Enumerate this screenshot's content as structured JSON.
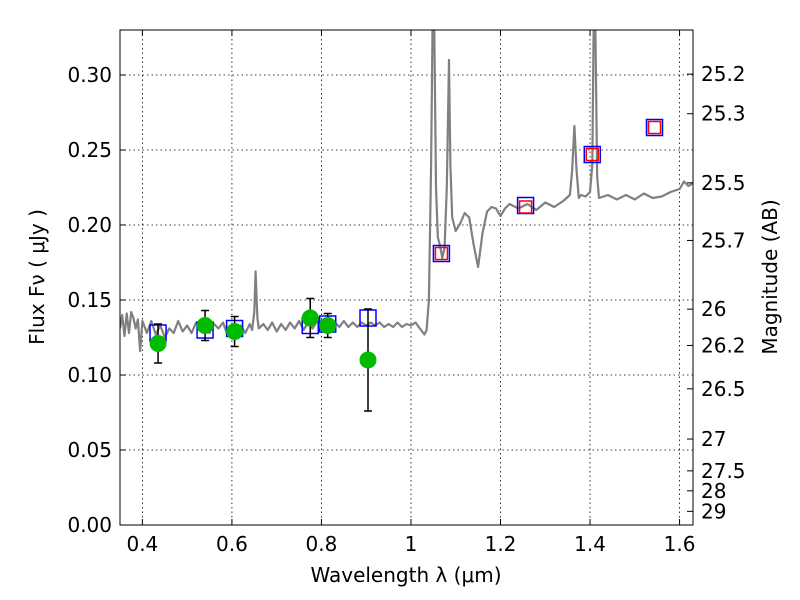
{
  "chart_data": {
    "type": "scatter",
    "title": "",
    "xlabel": "Wavelength  λ (μm)",
    "ylabel": "Flux  Fν  ( μJy )",
    "ylabel_right": "Magnitude (AB)",
    "xlim": [
      0.35,
      1.63
    ],
    "ylim": [
      0.0,
      0.33
    ],
    "grid": true,
    "x_ticks": [
      0.4,
      0.6,
      0.8,
      1.0,
      1.2,
      1.4,
      1.6
    ],
    "x_tick_labels": [
      "0.4",
      "0.6",
      "0.8",
      "1",
      "1.2",
      "1.4",
      "1.6"
    ],
    "y_ticks": [
      0.0,
      0.05,
      0.1,
      0.15,
      0.2,
      0.25,
      0.3
    ],
    "y_tick_labels": [
      "0.00",
      "0.05",
      "0.10",
      "0.15",
      "0.20",
      "0.25",
      "0.30"
    ],
    "right_ticks": [
      {
        "label": "25.2",
        "flux": 0.3006
      },
      {
        "label": "25.3",
        "flux": 0.2742
      },
      {
        "label": "25.5",
        "flux": 0.2281
      },
      {
        "label": "25.7",
        "flux": 0.1897
      },
      {
        "label": "26",
        "flux": 0.1439
      },
      {
        "label": "26.2",
        "flux": 0.1197
      },
      {
        "label": "26.5",
        "flux": 0.0908
      },
      {
        "label": "27",
        "flux": 0.0573
      },
      {
        "label": "27.5",
        "flux": 0.0361
      },
      {
        "label": "28",
        "flux": 0.0228
      },
      {
        "label": "29",
        "flux": 0.0091
      }
    ],
    "series": [
      {
        "name": "template spectrum",
        "kind": "line",
        "color": "#808080",
        "points": [
          [
            0.35,
            0.131
          ],
          [
            0.355,
            0.14
          ],
          [
            0.36,
            0.126
          ],
          [
            0.365,
            0.141
          ],
          [
            0.37,
            0.128
          ],
          [
            0.375,
            0.142
          ],
          [
            0.38,
            0.138
          ],
          [
            0.385,
            0.131
          ],
          [
            0.39,
            0.137
          ],
          [
            0.395,
            0.116
          ],
          [
            0.4,
            0.136
          ],
          [
            0.41,
            0.128
          ],
          [
            0.42,
            0.136
          ],
          [
            0.43,
            0.127
          ],
          [
            0.44,
            0.133
          ],
          [
            0.45,
            0.125
          ],
          [
            0.46,
            0.131
          ],
          [
            0.47,
            0.128
          ],
          [
            0.48,
            0.136
          ],
          [
            0.49,
            0.129
          ],
          [
            0.5,
            0.133
          ],
          [
            0.51,
            0.128
          ],
          [
            0.52,
            0.135
          ],
          [
            0.53,
            0.13
          ],
          [
            0.54,
            0.136
          ],
          [
            0.55,
            0.128
          ],
          [
            0.56,
            0.134
          ],
          [
            0.57,
            0.131
          ],
          [
            0.58,
            0.135
          ],
          [
            0.59,
            0.127
          ],
          [
            0.6,
            0.134
          ],
          [
            0.61,
            0.129
          ],
          [
            0.62,
            0.133
          ],
          [
            0.63,
            0.128
          ],
          [
            0.64,
            0.134
          ],
          [
            0.645,
            0.13
          ],
          [
            0.65,
            0.142
          ],
          [
            0.653,
            0.169
          ],
          [
            0.657,
            0.138
          ],
          [
            0.66,
            0.131
          ],
          [
            0.67,
            0.134
          ],
          [
            0.68,
            0.13
          ],
          [
            0.69,
            0.135
          ],
          [
            0.7,
            0.129
          ],
          [
            0.71,
            0.134
          ],
          [
            0.72,
            0.13
          ],
          [
            0.73,
            0.135
          ],
          [
            0.74,
            0.131
          ],
          [
            0.75,
            0.136
          ],
          [
            0.76,
            0.13
          ],
          [
            0.77,
            0.135
          ],
          [
            0.78,
            0.131
          ],
          [
            0.79,
            0.136
          ],
          [
            0.8,
            0.132
          ],
          [
            0.81,
            0.136
          ],
          [
            0.82,
            0.131
          ],
          [
            0.83,
            0.135
          ],
          [
            0.84,
            0.132
          ],
          [
            0.85,
            0.136
          ],
          [
            0.86,
            0.132
          ],
          [
            0.87,
            0.135
          ],
          [
            0.88,
            0.132
          ],
          [
            0.89,
            0.135
          ],
          [
            0.9,
            0.133
          ],
          [
            0.91,
            0.135
          ],
          [
            0.92,
            0.133
          ],
          [
            0.93,
            0.135
          ],
          [
            0.94,
            0.132
          ],
          [
            0.95,
            0.134
          ],
          [
            0.96,
            0.132
          ],
          [
            0.97,
            0.135
          ],
          [
            0.98,
            0.132
          ],
          [
            0.99,
            0.134
          ],
          [
            1.0,
            0.133
          ],
          [
            1.01,
            0.135
          ],
          [
            1.02,
            0.131
          ],
          [
            1.03,
            0.127
          ],
          [
            1.035,
            0.13
          ],
          [
            1.04,
            0.15
          ],
          [
            1.045,
            0.24
          ],
          [
            1.048,
            0.33
          ],
          [
            1.052,
            0.33
          ],
          [
            1.056,
            0.225
          ],
          [
            1.06,
            0.192
          ],
          [
            1.065,
            0.186
          ],
          [
            1.07,
            0.178
          ],
          [
            1.075,
            0.185
          ],
          [
            1.08,
            0.225
          ],
          [
            1.085,
            0.31
          ],
          [
            1.088,
            0.24
          ],
          [
            1.092,
            0.205
          ],
          [
            1.1,
            0.196
          ],
          [
            1.11,
            0.201
          ],
          [
            1.12,
            0.208
          ],
          [
            1.13,
            0.205
          ],
          [
            1.14,
            0.187
          ],
          [
            1.15,
            0.172
          ],
          [
            1.16,
            0.195
          ],
          [
            1.17,
            0.209
          ],
          [
            1.18,
            0.212
          ],
          [
            1.19,
            0.211
          ],
          [
            1.2,
            0.206
          ],
          [
            1.21,
            0.211
          ],
          [
            1.22,
            0.214
          ],
          [
            1.24,
            0.211
          ],
          [
            1.26,
            0.214
          ],
          [
            1.28,
            0.21
          ],
          [
            1.3,
            0.215
          ],
          [
            1.32,
            0.212
          ],
          [
            1.34,
            0.216
          ],
          [
            1.355,
            0.22
          ],
          [
            1.36,
            0.236
          ],
          [
            1.365,
            0.266
          ],
          [
            1.37,
            0.236
          ],
          [
            1.375,
            0.218
          ],
          [
            1.38,
            0.22
          ],
          [
            1.39,
            0.219
          ],
          [
            1.4,
            0.222
          ],
          [
            1.405,
            0.24
          ],
          [
            1.408,
            0.33
          ],
          [
            1.412,
            0.33
          ],
          [
            1.416,
            0.232
          ],
          [
            1.42,
            0.218
          ],
          [
            1.44,
            0.22
          ],
          [
            1.46,
            0.217
          ],
          [
            1.48,
            0.22
          ],
          [
            1.5,
            0.217
          ],
          [
            1.52,
            0.221
          ],
          [
            1.54,
            0.218
          ],
          [
            1.56,
            0.219
          ],
          [
            1.58,
            0.222
          ],
          [
            1.6,
            0.224
          ],
          [
            1.61,
            0.229
          ],
          [
            1.62,
            0.226
          ],
          [
            1.63,
            0.228
          ]
        ]
      },
      {
        "name": "model photometry",
        "kind": "open-square",
        "color": "#0000ff",
        "points": [
          {
            "x": 0.435,
            "y": 0.128
          },
          {
            "x": 0.54,
            "y": 0.13
          },
          {
            "x": 0.606,
            "y": 0.131
          },
          {
            "x": 0.775,
            "y": 0.133
          },
          {
            "x": 0.814,
            "y": 0.134
          },
          {
            "x": 0.904,
            "y": 0.138
          },
          {
            "x": 1.068,
            "y": 0.181
          },
          {
            "x": 1.256,
            "y": 0.213
          },
          {
            "x": 1.405,
            "y": 0.247
          },
          {
            "x": 1.544,
            "y": 0.265
          }
        ]
      },
      {
        "name": "upper limits",
        "kind": "open-square",
        "color": "#ff0000",
        "points": [
          {
            "x": 1.068,
            "y": 0.181
          },
          {
            "x": 1.256,
            "y": 0.212
          },
          {
            "x": 1.405,
            "y": 0.247
          },
          {
            "x": 1.544,
            "y": 0.265
          }
        ]
      },
      {
        "name": "observed photometry",
        "kind": "filled-circle",
        "color": "#00bb00",
        "points": [
          {
            "x": 0.435,
            "y": 0.121,
            "err": 0.013
          },
          {
            "x": 0.54,
            "y": 0.133,
            "err": 0.01
          },
          {
            "x": 0.606,
            "y": 0.129,
            "err": 0.01
          },
          {
            "x": 0.775,
            "y": 0.138,
            "err": 0.013
          },
          {
            "x": 0.814,
            "y": 0.133,
            "err": 0.008
          },
          {
            "x": 0.904,
            "y": 0.11,
            "err": 0.034
          }
        ]
      }
    ]
  }
}
